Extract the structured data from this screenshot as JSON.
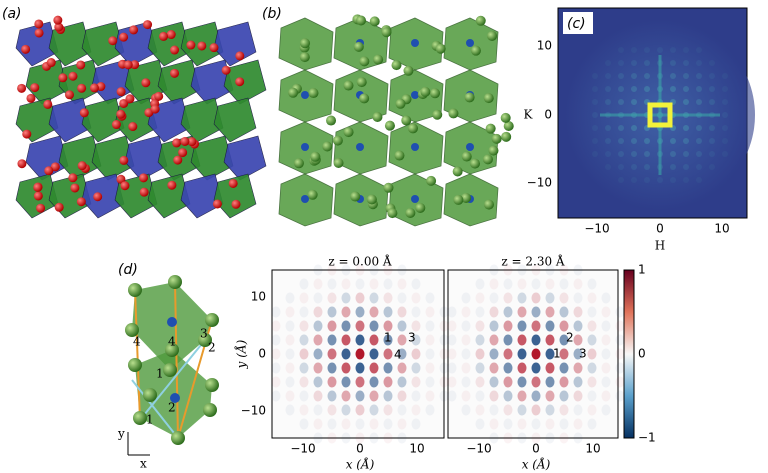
{
  "panels": {
    "a": {
      "label": "(a)"
    },
    "b": {
      "label": "(b)"
    },
    "c": {
      "label": "(c)",
      "x_label": "H",
      "y_label": "K",
      "x_ticks": [
        "−10",
        "0",
        "10"
      ],
      "y_ticks": [
        "10",
        "0",
        "−10"
      ]
    },
    "d": {
      "label": "(d)",
      "bond_labels": [
        "4",
        "4",
        "3",
        "2",
        "1",
        "2",
        "1"
      ],
      "axis_x": "x",
      "axis_y": "y",
      "maps": [
        {
          "title": "z = 0.00 Å",
          "x_label": "x (Å)",
          "y_label": "y (Å)",
          "x_ticks": [
            "−10",
            "0",
            "10"
          ],
          "y_ticks": [
            "10",
            "0",
            "−10"
          ],
          "labels": [
            "1",
            "3",
            "4"
          ]
        },
        {
          "title": "z = 2.30 Å",
          "x_label": "x (Å)",
          "x_ticks": [
            "−10",
            "0",
            "10"
          ],
          "labels": [
            "2",
            "1",
            "3"
          ]
        }
      ],
      "colorbar_ticks": [
        "1",
        "0",
        "−1"
      ]
    }
  }
}
